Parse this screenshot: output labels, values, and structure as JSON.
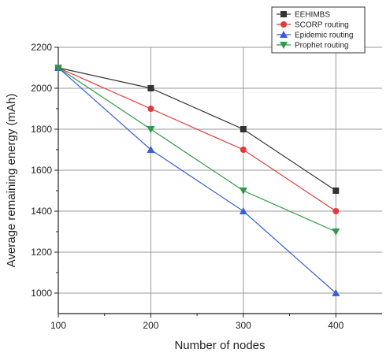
{
  "chart_data": {
    "type": "line",
    "title": "",
    "xlabel": "Number of nodes",
    "ylabel": "Average remaining energy (mAh)",
    "x": [
      100,
      200,
      300,
      400
    ],
    "xlim": [
      100,
      450
    ],
    "ylim": [
      900,
      2200
    ],
    "xticks": [
      "100",
      "200",
      "300",
      "400"
    ],
    "yticks": [
      "1000",
      "1200",
      "1400",
      "1600",
      "1800",
      "2000",
      "2200"
    ],
    "grid": true,
    "legend_position": "top-right",
    "series": [
      {
        "name": "EEHIMBS",
        "values": [
          2100,
          2000,
          1800,
          1500
        ],
        "color": "#333333",
        "marker": "square"
      },
      {
        "name": "SCORP routing",
        "values": [
          2100,
          1900,
          1700,
          1400
        ],
        "color": "#e03a3a",
        "marker": "circle"
      },
      {
        "name": "Epidemic routing",
        "values": [
          2100,
          1700,
          1400,
          1000
        ],
        "color": "#3a5fd6",
        "marker": "triangle-up"
      },
      {
        "name": "Prophet routing",
        "values": [
          2100,
          1800,
          1500,
          1300
        ],
        "color": "#2e9a4a",
        "marker": "triangle-down"
      }
    ]
  }
}
